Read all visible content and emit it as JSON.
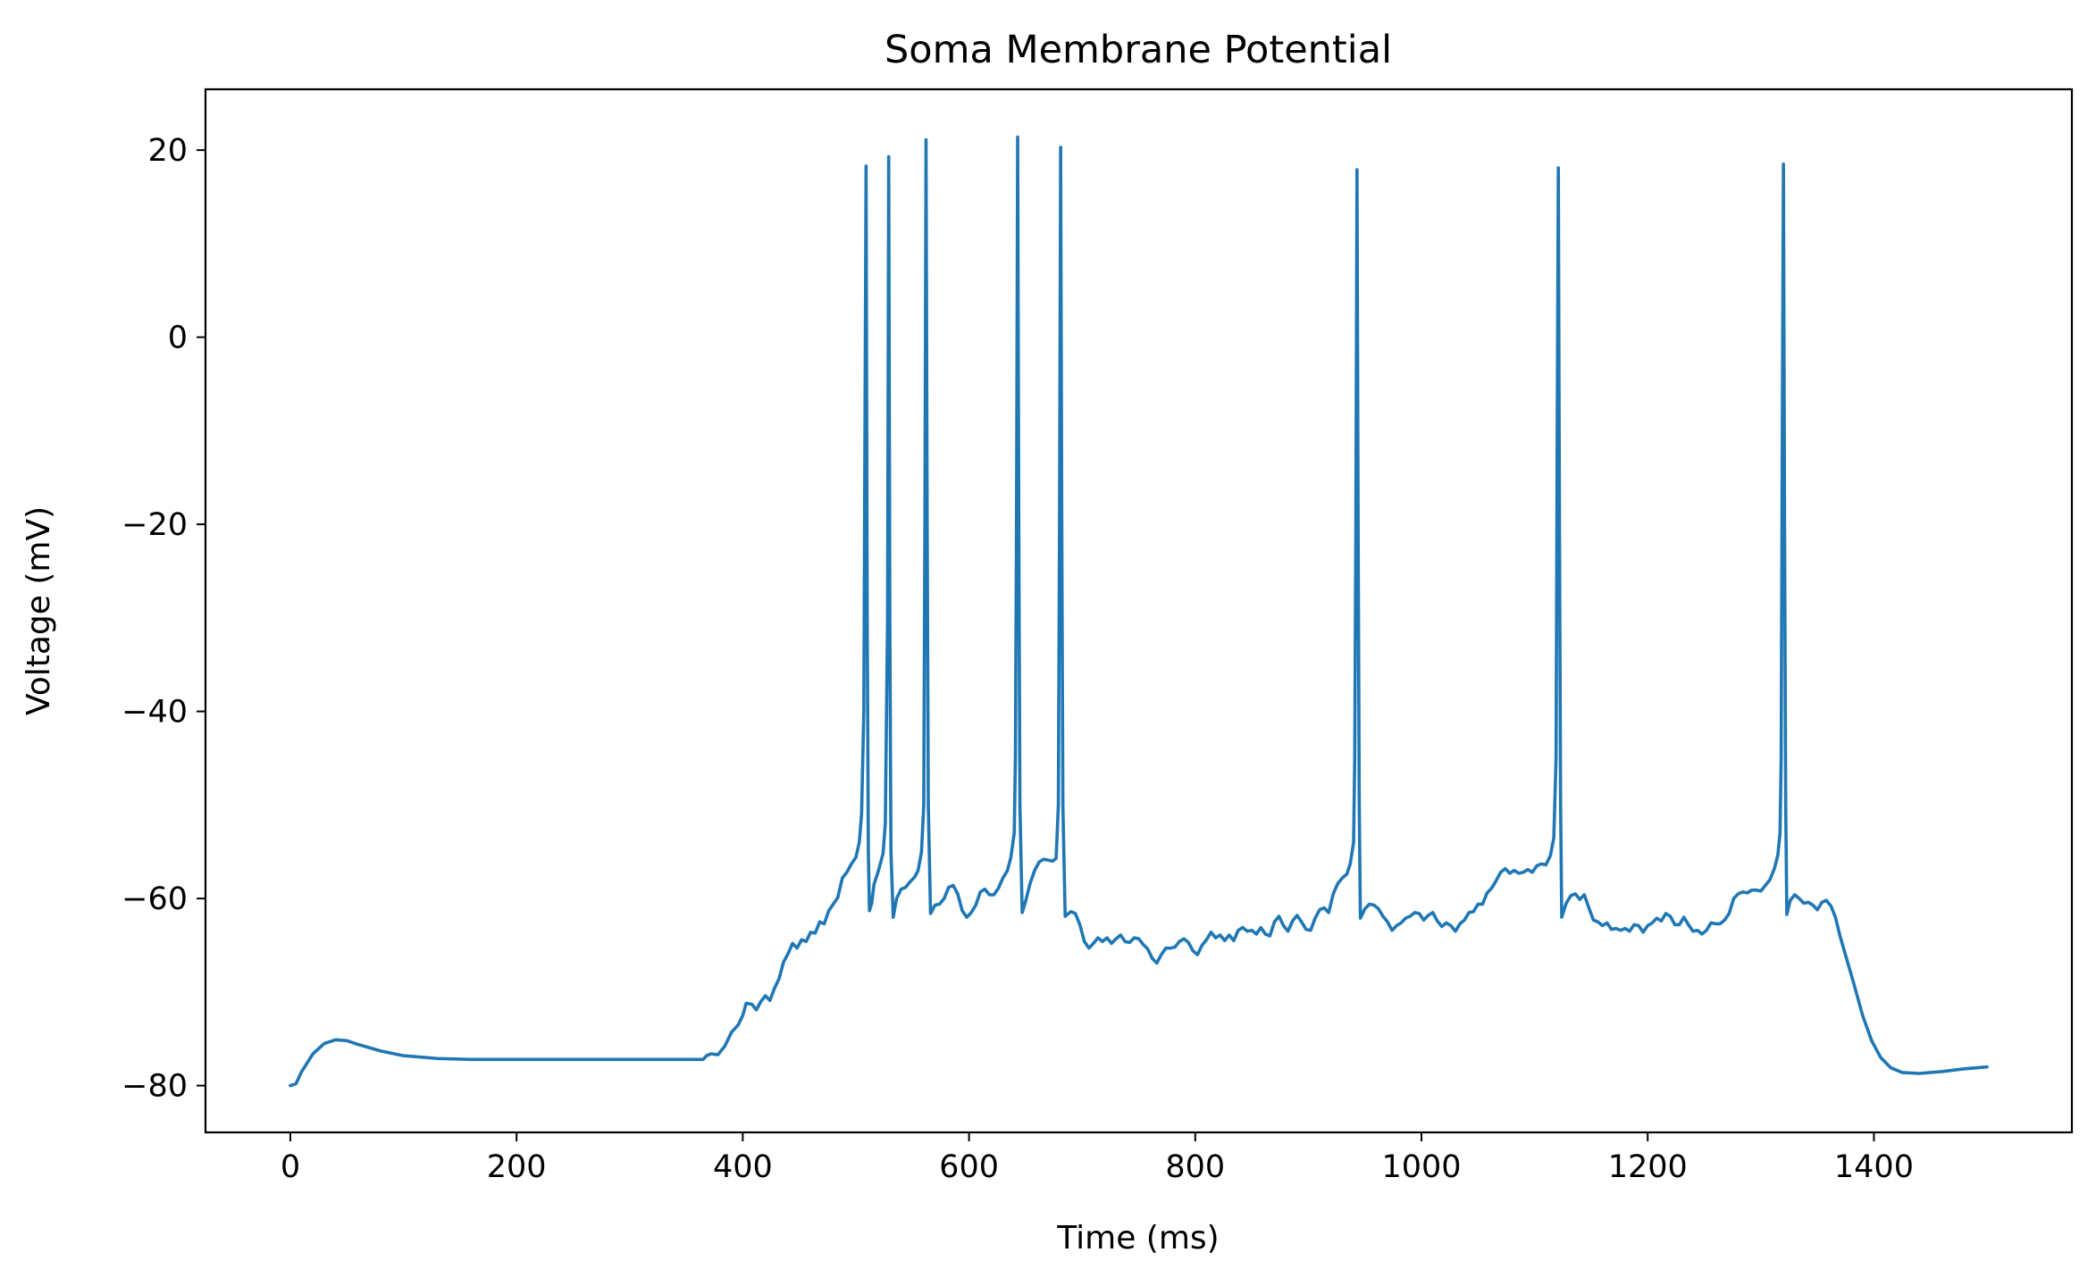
{
  "chart_data": {
    "type": "line",
    "title": "Soma Membrane Potential",
    "xlabel": "Time (ms)",
    "ylabel": "Voltage (mV)",
    "xlim": [
      -75,
      1575
    ],
    "ylim": [
      -85,
      26.5
    ],
    "xticks": [
      0,
      200,
      400,
      600,
      800,
      1000,
      1200,
      1400
    ],
    "yticks": [
      -80,
      -60,
      -40,
      -20,
      0,
      20
    ],
    "ytick_labels": [
      "−80",
      "−60",
      "−40",
      "−20",
      "0",
      "20"
    ],
    "grid": false,
    "line_color": "#1f77b4",
    "series": [
      {
        "points": [
          [
            0,
            -80
          ],
          [
            5,
            -79.8
          ],
          [
            10,
            -78.5
          ],
          [
            20,
            -76.6
          ],
          [
            30,
            -75.5
          ],
          [
            40,
            -75.1
          ],
          [
            50,
            -75.2
          ],
          [
            60,
            -75.6
          ],
          [
            80,
            -76.3
          ],
          [
            100,
            -76.8
          ],
          [
            130,
            -77.1
          ],
          [
            160,
            -77.2
          ],
          [
            200,
            -77.2
          ],
          [
            250,
            -77.2
          ],
          [
            300,
            -77.2
          ],
          [
            340,
            -77.2
          ],
          [
            365,
            -77.2
          ],
          [
            368,
            -76.8
          ],
          [
            372,
            -76.6
          ],
          [
            378,
            -76.7
          ],
          [
            384,
            -75.8
          ],
          [
            390,
            -74.3
          ],
          [
            396,
            -73.5
          ],
          [
            400,
            -72.5
          ],
          [
            403,
            -71.2
          ],
          [
            408,
            -71.3
          ],
          [
            412,
            -71.9
          ],
          [
            416,
            -71
          ],
          [
            420,
            -70.4
          ],
          [
            424,
            -70.9
          ],
          [
            428,
            -69.6
          ],
          [
            432,
            -68.6
          ],
          [
            436,
            -66.8
          ],
          [
            440,
            -65.9
          ],
          [
            444,
            -64.8
          ],
          [
            448,
            -65.3
          ],
          [
            452,
            -64.4
          ],
          [
            456,
            -64.6
          ],
          [
            460,
            -63.6
          ],
          [
            464,
            -63.7
          ],
          [
            468,
            -62.5
          ],
          [
            472,
            -62.7
          ],
          [
            476,
            -61.3
          ],
          [
            480,
            -60.6
          ],
          [
            484,
            -59.9
          ],
          [
            488,
            -57.8
          ],
          [
            492,
            -57.2
          ],
          [
            496,
            -56.3
          ],
          [
            500,
            -55.6
          ],
          [
            503,
            -54
          ],
          [
            505,
            -51
          ],
          [
            507,
            -40
          ],
          [
            508,
            -10
          ],
          [
            509,
            18.3
          ],
          [
            510,
            -30
          ],
          [
            511,
            -55
          ],
          [
            512,
            -61.3
          ],
          [
            514,
            -60.5
          ],
          [
            516,
            -58.5
          ],
          [
            520,
            -57
          ],
          [
            524,
            -55.2
          ],
          [
            526,
            -52
          ],
          [
            528,
            -30
          ],
          [
            529,
            19.3
          ],
          [
            530,
            -30
          ],
          [
            531,
            -55
          ],
          [
            533,
            -62
          ],
          [
            536,
            -60
          ],
          [
            540,
            -59
          ],
          [
            544,
            -58.8
          ],
          [
            548,
            -58.2
          ],
          [
            552,
            -57.7
          ],
          [
            555,
            -57
          ],
          [
            558,
            -55
          ],
          [
            560,
            -50
          ],
          [
            561,
            -20
          ],
          [
            562,
            21.1
          ],
          [
            563,
            -20
          ],
          [
            564,
            -50
          ],
          [
            566,
            -61.6
          ],
          [
            570,
            -60.7
          ],
          [
            574,
            -60.6
          ],
          [
            578,
            -60
          ],
          [
            582,
            -58.8
          ],
          [
            586,
            -58.6
          ],
          [
            590,
            -59.5
          ],
          [
            594,
            -61.3
          ],
          [
            598,
            -62
          ],
          [
            602,
            -61.5
          ],
          [
            606,
            -60.7
          ],
          [
            610,
            -59.3
          ],
          [
            614,
            -59
          ],
          [
            618,
            -59.6
          ],
          [
            622,
            -59.6
          ],
          [
            626,
            -58.9
          ],
          [
            630,
            -57.8
          ],
          [
            634,
            -57
          ],
          [
            637,
            -55.6
          ],
          [
            640,
            -53
          ],
          [
            641,
            -45
          ],
          [
            642,
            -20
          ],
          [
            643,
            21.4
          ],
          [
            644,
            -20
          ],
          [
            645,
            -50
          ],
          [
            647,
            -61.5
          ],
          [
            650,
            -60.3
          ],
          [
            654,
            -58.4
          ],
          [
            658,
            -57
          ],
          [
            662,
            -56.1
          ],
          [
            666,
            -55.8
          ],
          [
            670,
            -55.9
          ],
          [
            674,
            -56
          ],
          [
            677,
            -55.7
          ],
          [
            679,
            -50
          ],
          [
            680,
            -20
          ],
          [
            681,
            20.3
          ],
          [
            682,
            -20
          ],
          [
            683,
            -50
          ],
          [
            685,
            -61.9
          ],
          [
            690,
            -61.4
          ],
          [
            694,
            -61.6
          ],
          [
            698,
            -62.8
          ],
          [
            702,
            -64.6
          ],
          [
            706,
            -65.3
          ],
          [
            710,
            -64.8
          ],
          [
            714,
            -64.2
          ],
          [
            718,
            -64.6
          ],
          [
            722,
            -64.2
          ],
          [
            726,
            -64.8
          ],
          [
            730,
            -64.3
          ],
          [
            734,
            -63.9
          ],
          [
            738,
            -64.6
          ],
          [
            742,
            -64.7
          ],
          [
            746,
            -64.2
          ],
          [
            750,
            -64.3
          ],
          [
            754,
            -64.9
          ],
          [
            758,
            -65.4
          ],
          [
            762,
            -66.4
          ],
          [
            766,
            -66.9
          ],
          [
            770,
            -66
          ],
          [
            774,
            -65.3
          ],
          [
            778,
            -65.3
          ],
          [
            782,
            -65.2
          ],
          [
            786,
            -64.6
          ],
          [
            790,
            -64.3
          ],
          [
            794,
            -64.7
          ],
          [
            798,
            -65.6
          ],
          [
            802,
            -66
          ],
          [
            806,
            -65
          ],
          [
            810,
            -64.4
          ],
          [
            814,
            -63.6
          ],
          [
            818,
            -64.2
          ],
          [
            822,
            -63.9
          ],
          [
            826,
            -64.5
          ],
          [
            830,
            -63.9
          ],
          [
            834,
            -64.5
          ],
          [
            838,
            -63.4
          ],
          [
            842,
            -63.1
          ],
          [
            846,
            -63.5
          ],
          [
            850,
            -63.4
          ],
          [
            854,
            -63.8
          ],
          [
            858,
            -63.1
          ],
          [
            862,
            -63.8
          ],
          [
            866,
            -64
          ],
          [
            870,
            -62.5
          ],
          [
            874,
            -61.9
          ],
          [
            878,
            -62.9
          ],
          [
            882,
            -63.5
          ],
          [
            886,
            -62.4
          ],
          [
            890,
            -61.8
          ],
          [
            894,
            -62.5
          ],
          [
            898,
            -63.3
          ],
          [
            902,
            -63.4
          ],
          [
            906,
            -62.1
          ],
          [
            910,
            -61.2
          ],
          [
            914,
            -61
          ],
          [
            918,
            -61.5
          ],
          [
            922,
            -59.5
          ],
          [
            926,
            -58.4
          ],
          [
            930,
            -57.8
          ],
          [
            934,
            -57.4
          ],
          [
            937,
            -56.3
          ],
          [
            940,
            -54
          ],
          [
            941,
            -45
          ],
          [
            942,
            -20
          ],
          [
            943,
            17.9
          ],
          [
            944,
            -20
          ],
          [
            945,
            -50
          ],
          [
            946,
            -62.1
          ],
          [
            950,
            -61.1
          ],
          [
            954,
            -60.6
          ],
          [
            958,
            -60.7
          ],
          [
            962,
            -61.1
          ],
          [
            966,
            -61.9
          ],
          [
            970,
            -62.5
          ],
          [
            974,
            -63.4
          ],
          [
            978,
            -62.9
          ],
          [
            982,
            -62.6
          ],
          [
            986,
            -62.1
          ],
          [
            990,
            -61.9
          ],
          [
            994,
            -61.5
          ],
          [
            998,
            -61.6
          ],
          [
            1002,
            -62.3
          ],
          [
            1006,
            -61.8
          ],
          [
            1010,
            -61.5
          ],
          [
            1014,
            -62.4
          ],
          [
            1018,
            -63
          ],
          [
            1022,
            -62.6
          ],
          [
            1026,
            -62.9
          ],
          [
            1030,
            -63.5
          ],
          [
            1034,
            -62.7
          ],
          [
            1038,
            -62.3
          ],
          [
            1042,
            -61.5
          ],
          [
            1046,
            -61.4
          ],
          [
            1050,
            -60.6
          ],
          [
            1054,
            -60.6
          ],
          [
            1058,
            -59.4
          ],
          [
            1062,
            -58.9
          ],
          [
            1066,
            -58.1
          ],
          [
            1070,
            -57.2
          ],
          [
            1074,
            -56.8
          ],
          [
            1078,
            -57.3
          ],
          [
            1082,
            -57
          ],
          [
            1086,
            -57.3
          ],
          [
            1090,
            -57.2
          ],
          [
            1094,
            -56.9
          ],
          [
            1098,
            -57.2
          ],
          [
            1102,
            -56.5
          ],
          [
            1106,
            -56.3
          ],
          [
            1110,
            -56.4
          ],
          [
            1114,
            -55.4
          ],
          [
            1117,
            -53.5
          ],
          [
            1119,
            -45
          ],
          [
            1120,
            -10
          ],
          [
            1121,
            18.1
          ],
          [
            1122,
            -20
          ],
          [
            1123,
            -50
          ],
          [
            1124,
            -62
          ],
          [
            1128,
            -60.5
          ],
          [
            1132,
            -59.7
          ],
          [
            1136,
            -59.5
          ],
          [
            1140,
            -60.1
          ],
          [
            1144,
            -59.6
          ],
          [
            1148,
            -61
          ],
          [
            1152,
            -62.3
          ],
          [
            1156,
            -62.5
          ],
          [
            1160,
            -62.9
          ],
          [
            1164,
            -62.6
          ],
          [
            1168,
            -63.3
          ],
          [
            1172,
            -63.2
          ],
          [
            1176,
            -63.4
          ],
          [
            1180,
            -63.2
          ],
          [
            1184,
            -63.5
          ],
          [
            1188,
            -62.8
          ],
          [
            1192,
            -62.9
          ],
          [
            1196,
            -63.6
          ],
          [
            1200,
            -62.9
          ],
          [
            1204,
            -62.6
          ],
          [
            1208,
            -62.1
          ],
          [
            1212,
            -62.4
          ],
          [
            1216,
            -61.6
          ],
          [
            1220,
            -61.9
          ],
          [
            1224,
            -62.8
          ],
          [
            1228,
            -62.8
          ],
          [
            1232,
            -62
          ],
          [
            1236,
            -62.8
          ],
          [
            1240,
            -63.5
          ],
          [
            1244,
            -63.4
          ],
          [
            1248,
            -63.8
          ],
          [
            1252,
            -63.4
          ],
          [
            1256,
            -62.6
          ],
          [
            1260,
            -62.7
          ],
          [
            1264,
            -62.7
          ],
          [
            1268,
            -62.3
          ],
          [
            1272,
            -61.6
          ],
          [
            1276,
            -60
          ],
          [
            1280,
            -59.5
          ],
          [
            1284,
            -59.3
          ],
          [
            1288,
            -59.4
          ],
          [
            1292,
            -59.1
          ],
          [
            1296,
            -59.1
          ],
          [
            1300,
            -59.2
          ],
          [
            1304,
            -58.6
          ],
          [
            1308,
            -58
          ],
          [
            1312,
            -56.8
          ],
          [
            1315,
            -55.4
          ],
          [
            1317,
            -53
          ],
          [
            1318,
            -45
          ],
          [
            1319,
            -10
          ],
          [
            1320,
            18.5
          ],
          [
            1321,
            -20
          ],
          [
            1322,
            -50
          ],
          [
            1323,
            -61.7
          ],
          [
            1326,
            -60.2
          ],
          [
            1330,
            -59.6
          ],
          [
            1334,
            -60
          ],
          [
            1338,
            -60.5
          ],
          [
            1342,
            -60.4
          ],
          [
            1346,
            -60.7
          ],
          [
            1350,
            -61.2
          ],
          [
            1354,
            -60.4
          ],
          [
            1358,
            -60.2
          ],
          [
            1362,
            -60.8
          ],
          [
            1366,
            -62
          ],
          [
            1370,
            -64
          ],
          [
            1376,
            -66.5
          ],
          [
            1382,
            -69
          ],
          [
            1390,
            -72.5
          ],
          [
            1398,
            -75.2
          ],
          [
            1406,
            -77
          ],
          [
            1415,
            -78.1
          ],
          [
            1425,
            -78.6
          ],
          [
            1440,
            -78.7
          ],
          [
            1460,
            -78.5
          ],
          [
            1480,
            -78.2
          ],
          [
            1500,
            -78
          ]
        ]
      }
    ]
  }
}
